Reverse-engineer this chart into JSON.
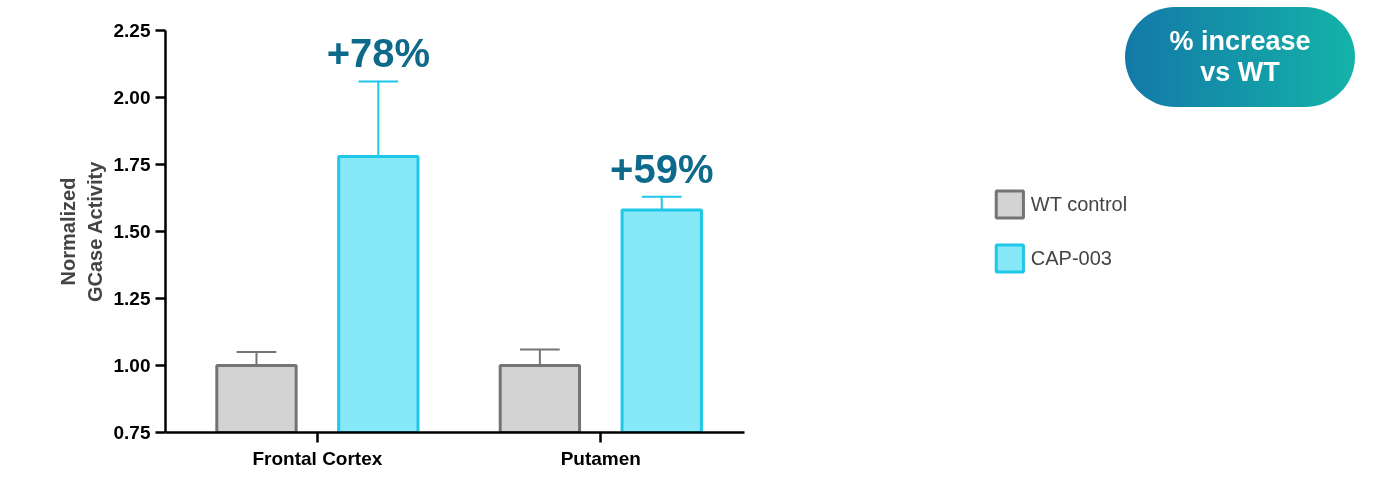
{
  "chart_data": {
    "type": "bar",
    "categories": [
      "Frontal Cortex",
      "Putamen"
    ],
    "ylabel": "Normalized GCase Activity",
    "ylim": [
      0.75,
      2.25
    ],
    "yticks": [
      {
        "value": 0.75,
        "label": "0.75"
      },
      {
        "value": 1.0,
        "label": "1.00"
      },
      {
        "value": 1.25,
        "label": "1.25"
      },
      {
        "value": 1.5,
        "label": "1.50"
      },
      {
        "value": 1.75,
        "label": "1.75"
      },
      {
        "value": 2.0,
        "label": "2.00"
      },
      {
        "value": 2.25,
        "label": "2.25"
      }
    ],
    "series": [
      {
        "name": "WT control",
        "color": "#d3d3d3",
        "values": [
          1.0,
          1.0
        ],
        "errors": [
          [
            1.0,
            1.05
          ],
          [
            1.0,
            1.06
          ]
        ]
      },
      {
        "name": "CAP-003",
        "color": "#87e8f8",
        "values": [
          1.78,
          1.58
        ],
        "errors": [
          [
            1.78,
            2.06
          ],
          [
            1.58,
            1.63
          ]
        ]
      }
    ],
    "annotations": [
      "+78%",
      "+59%",
      "% increase vs WT"
    ],
    "legend": "right",
    "grid": false
  }
}
